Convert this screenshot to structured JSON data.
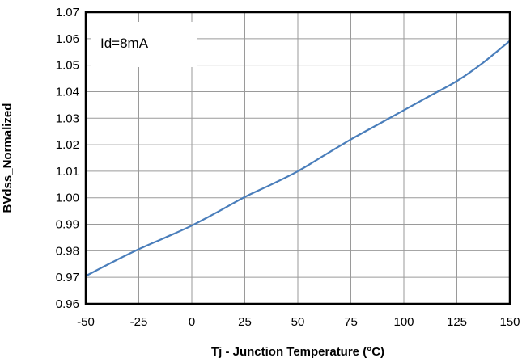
{
  "chart_data": {
    "type": "line",
    "xlabel": "Tj - Junction Temperature (°C)",
    "ylabel": "BVdss_Normalized",
    "xlim": [
      -50,
      150
    ],
    "ylim": [
      0.96,
      1.07
    ],
    "x_ticks": [
      -50,
      -25,
      0,
      25,
      50,
      75,
      100,
      125,
      150
    ],
    "y_ticks": [
      0.96,
      0.97,
      0.98,
      0.99,
      1.0,
      1.01,
      1.02,
      1.03,
      1.04,
      1.05,
      1.06,
      1.07
    ],
    "x_tick_labels": [
      "-50",
      "-25",
      "0",
      "25",
      "50",
      "75",
      "100",
      "125",
      "150"
    ],
    "y_tick_labels": [
      "0.96",
      "0.97",
      "0.98",
      "0.99",
      "1.00",
      "1.01",
      "1.02",
      "1.03",
      "1.04",
      "1.05",
      "1.06",
      "1.07"
    ],
    "grid": true,
    "annotation": "Id=8mA",
    "line_color": "#4a7ebb",
    "series": [
      {
        "x": [
          -50,
          -37.5,
          -25,
          -12.5,
          0,
          12.5,
          25,
          37.5,
          50,
          62.5,
          75,
          87.5,
          100,
          112.5,
          125,
          137.5,
          150
        ],
        "values": [
          0.9705,
          0.9757,
          0.9806,
          0.985,
          0.9895,
          0.9948,
          1.0003,
          1.005,
          1.01,
          1.016,
          1.022,
          1.0275,
          1.033,
          1.0385,
          1.044,
          1.051,
          1.0592
        ]
      }
    ]
  }
}
